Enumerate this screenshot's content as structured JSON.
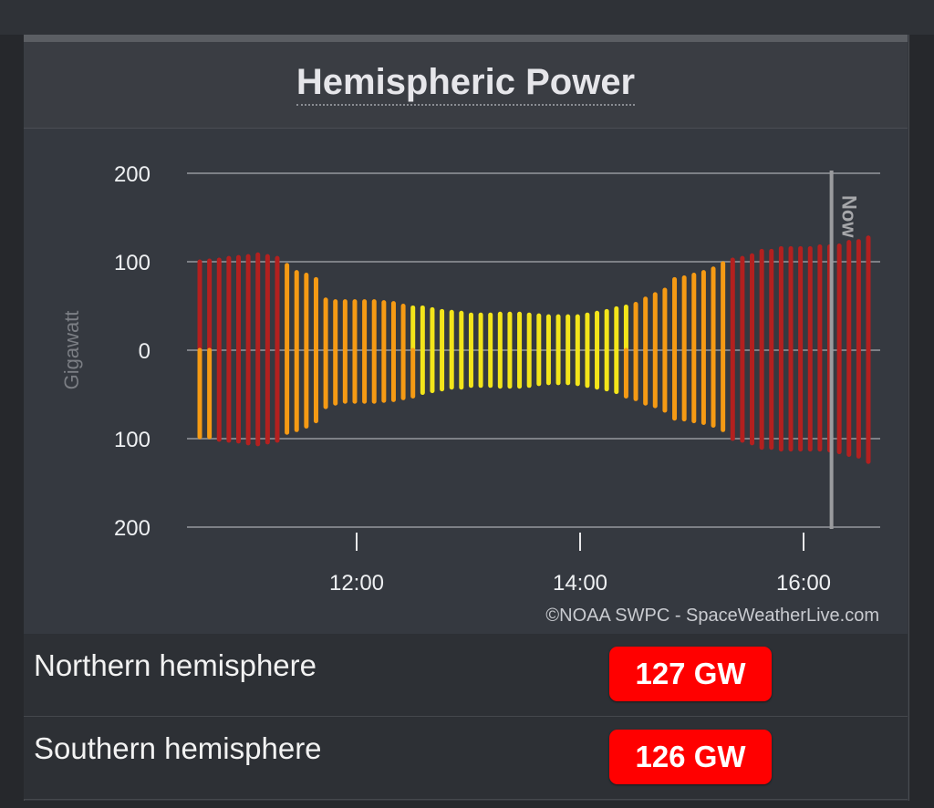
{
  "title": "Hemispheric Power",
  "credit": "©NOAA SWPC - SpaceWeatherLive.com",
  "colors": {
    "red": "#b3201f",
    "orange": "#f59a14",
    "yellow": "#f3e51a",
    "badge": "#ff0000"
  },
  "chart_data": {
    "type": "bar",
    "title": "Hemispheric Power",
    "ylabel": "Gigawatt",
    "ylim": [
      -200,
      200
    ],
    "y_ticks": [
      200,
      100,
      0,
      -100,
      -200
    ],
    "y_tick_labels": [
      "200",
      "100",
      "0",
      "100",
      "200"
    ],
    "x_start_hours": 10.6,
    "x_end_hours": 16.6,
    "x_ticks_hours": [
      12,
      14,
      16
    ],
    "x_tick_labels": [
      "12:00",
      "14:00",
      "16:00"
    ],
    "now_hours": 16.25,
    "now_label": "Now",
    "color_thresholds": {
      "yellow_below": 50,
      "red_from": 100
    },
    "north": [
      100,
      101,
      102,
      104,
      105,
      106,
      108,
      106,
      104,
      96,
      88,
      85,
      80,
      57,
      55,
      55,
      55,
      55,
      55,
      54,
      53,
      50,
      48,
      48,
      46,
      44,
      43,
      42,
      40,
      40,
      40,
      41,
      41,
      41,
      40,
      39,
      38,
      38,
      38,
      38,
      40,
      42,
      44,
      47,
      49,
      52,
      58,
      63,
      68,
      80,
      82,
      85,
      88,
      92,
      98,
      102,
      104,
      107,
      112,
      112,
      115,
      115,
      115,
      115,
      117,
      117,
      118,
      122,
      123,
      127
    ],
    "south": [
      98,
      98,
      101,
      102,
      103,
      105,
      106,
      104,
      102,
      93,
      90,
      86,
      80,
      64,
      60,
      58,
      58,
      58,
      58,
      57,
      56,
      54,
      52,
      48,
      46,
      44,
      42,
      42,
      40,
      40,
      40,
      41,
      41,
      41,
      40,
      38,
      37,
      37,
      37,
      38,
      40,
      42,
      44,
      47,
      52,
      55,
      60,
      63,
      68,
      77,
      78,
      80,
      82,
      85,
      90,
      100,
      102,
      105,
      110,
      110,
      112,
      112,
      112,
      112,
      112,
      113,
      115,
      118,
      120,
      126
    ]
  },
  "hemispheres": [
    {
      "label": "Northern hemisphere",
      "value": "127 GW"
    },
    {
      "label": "Southern hemisphere",
      "value": "126 GW"
    }
  ]
}
